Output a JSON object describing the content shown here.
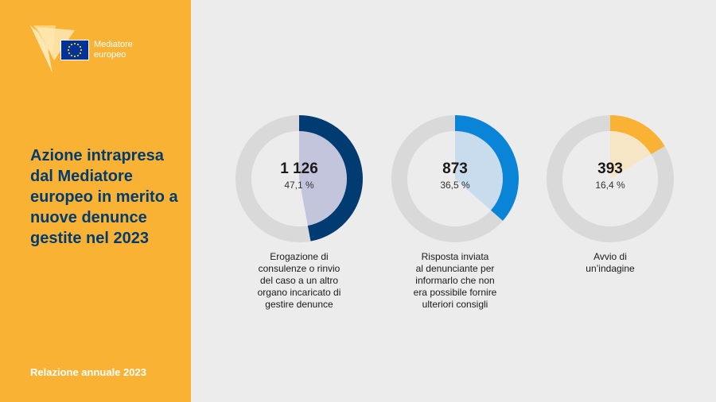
{
  "logo": {
    "line1": "Mediatore",
    "line2": "europeo"
  },
  "sidebar": {
    "title": "Azione intrapresa dal Mediatore europeo in merito a nuove denunce gestite nel 2023",
    "footer": "Relazione annuale 2023"
  },
  "colors": {
    "sidebar_bg": "#f9b233",
    "title": "#003c71",
    "track": "#d9d9d9",
    "series": [
      "#003c71",
      "#0a84d6",
      "#f9b233"
    ],
    "inner": [
      "#c3c5dc",
      "#c9dcee",
      "#f7e6c6"
    ]
  },
  "chart_data": [
    {
      "type": "pie",
      "value_label": "1 126",
      "value": 1126,
      "percent": 47.1,
      "percent_label": "47,1 %",
      "label": "Erogazione di\nconsulenze o rinvio\ndel caso a un altro\norgano incaricato di\ngestire denunce"
    },
    {
      "type": "pie",
      "value_label": "873",
      "value": 873,
      "percent": 36.5,
      "percent_label": "36,5 %",
      "label": "Risposta inviata\nal denunciante per\ninformarlo che non\nera possibile fornire\nulteriori consigli"
    },
    {
      "type": "pie",
      "value_label": "393",
      "value": 393,
      "percent": 16.4,
      "percent_label": "16,4 %",
      "label": "Avvio di\nun’indagine"
    }
  ]
}
